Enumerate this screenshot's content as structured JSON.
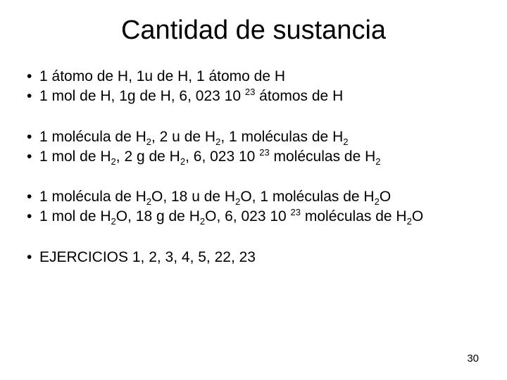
{
  "background_color": "#ffffff",
  "text_color": "#000000",
  "font_family": "Arial",
  "title": {
    "text": "Cantidad de sustancia",
    "fontsize": 38,
    "align": "center"
  },
  "body_fontsize": 21,
  "groups": [
    {
      "bullets": [
        {
          "segments": [
            {
              "t": "1 átomo de H, 1u de H, 1 átomo de H"
            }
          ]
        },
        {
          "segments": [
            {
              "t": "1 mol de H, 1g de H, 6, 023 10 "
            },
            {
              "t": "23",
              "sup": true
            },
            {
              "t": " átomos de H"
            }
          ]
        }
      ]
    },
    {
      "bullets": [
        {
          "segments": [
            {
              "t": "1 molécula de H"
            },
            {
              "t": "2",
              "sub": true
            },
            {
              "t": ", 2 u de H"
            },
            {
              "t": "2",
              "sub": true
            },
            {
              "t": ", 1 moléculas de H"
            },
            {
              "t": "2",
              "sub": true
            }
          ]
        },
        {
          "segments": [
            {
              "t": "1 mol de H"
            },
            {
              "t": "2",
              "sub": true
            },
            {
              "t": ", 2 g de H"
            },
            {
              "t": "2",
              "sub": true
            },
            {
              "t": ", 6, 023 10 "
            },
            {
              "t": "23",
              "sup": true
            },
            {
              "t": " moléculas de H"
            },
            {
              "t": "2",
              "sub": true
            }
          ]
        }
      ]
    },
    {
      "bullets": [
        {
          "segments": [
            {
              "t": "1 molécula de H"
            },
            {
              "t": "2",
              "sub": true
            },
            {
              "t": "O, 18 u de H"
            },
            {
              "t": "2",
              "sub": true
            },
            {
              "t": "O, 1 moléculas de H"
            },
            {
              "t": "2",
              "sub": true
            },
            {
              "t": "O"
            }
          ]
        },
        {
          "segments": [
            {
              "t": "1 mol de H"
            },
            {
              "t": "2",
              "sub": true
            },
            {
              "t": "O, 18 g de H"
            },
            {
              "t": "2",
              "sub": true
            },
            {
              "t": "O, 6, 023 10 "
            },
            {
              "t": "23",
              "sup": true
            },
            {
              "t": " moléculas de H"
            },
            {
              "t": "2",
              "sub": true
            },
            {
              "t": "O"
            }
          ]
        }
      ]
    },
    {
      "bullets": [
        {
          "segments": [
            {
              "t": "EJERCICIOS 1, 2, 3, 4, 5, 22, 23"
            }
          ]
        }
      ]
    }
  ],
  "page_number": "30"
}
